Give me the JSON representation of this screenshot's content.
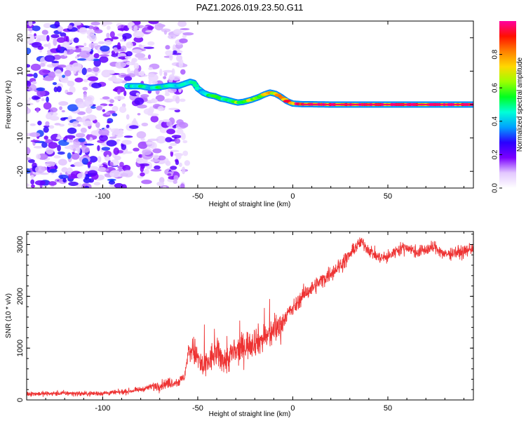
{
  "figure": {
    "title": "PAZ1.2026.019.23.50.G11"
  },
  "chart_data": [
    {
      "type": "heatmap",
      "title": "PAZ1.2026.019.23.50.G11",
      "xlabel": "Height of straight line (km)",
      "ylabel": "Frequency (Hz)",
      "xlim": [
        -140,
        95
      ],
      "ylim": [
        -25,
        25
      ],
      "xticks": [
        -100,
        -50,
        0,
        50
      ],
      "yticks": [
        -20,
        -10,
        0,
        10,
        20
      ],
      "colorbar": {
        "label": "Normalized spectral amplitude",
        "range": [
          0.0,
          1.0
        ],
        "ticks": [
          0.0,
          0.2,
          0.4,
          0.6,
          0.8
        ],
        "tick_labels": [
          "0.0",
          "0.2",
          "0.4",
          "0.6",
          "0.8"
        ],
        "colors": [
          "#ffffff",
          "#e3c8ff",
          "#7b00ff",
          "#2a00ff",
          "#00a0ff",
          "#00ffd8",
          "#00ff20",
          "#9cff00",
          "#ffd800",
          "#ff8000",
          "#ff1000",
          "#ff00a0"
        ]
      },
      "ridge": {
        "x": [
          -87,
          -80,
          -75,
          -70,
          -65,
          -60,
          -57,
          -54,
          -52,
          -50,
          -47,
          -44,
          -41,
          -38,
          -35,
          -32,
          -29,
          -26,
          -22,
          -18,
          -15,
          -12,
          -9,
          -6,
          -3,
          0,
          5,
          10,
          20,
          30,
          50,
          70,
          95
        ],
        "y": [
          5.5,
          5.5,
          5.0,
          5.2,
          5.7,
          5.6,
          6.2,
          6.8,
          6.5,
          4.8,
          3.5,
          2.8,
          2.5,
          1.8,
          1.5,
          1.0,
          0.6,
          0.8,
          1.4,
          2.2,
          3.0,
          3.6,
          3.2,
          2.2,
          1.0,
          0.3,
          0.1,
          0.1,
          0.0,
          0.0,
          0.0,
          0.0,
          0.0
        ],
        "amplitude": [
          0.45,
          0.5,
          0.5,
          0.55,
          0.5,
          0.45,
          0.5,
          0.55,
          0.5,
          0.45,
          0.5,
          0.55,
          0.55,
          0.6,
          0.62,
          0.65,
          0.65,
          0.68,
          0.7,
          0.72,
          0.75,
          0.8,
          0.85,
          0.88,
          0.92,
          0.95,
          0.95,
          0.97,
          0.97,
          0.97,
          0.97,
          0.97,
          0.97
        ]
      }
    },
    {
      "type": "line",
      "xlabel": "Height of straight line (km)",
      "ylabel": "SNR (10 * v/v)",
      "xlim": [
        -140,
        95
      ],
      "ylim": [
        0,
        3250
      ],
      "xticks": [
        -100,
        -50,
        0,
        50
      ],
      "yticks": [
        0,
        1000,
        2000,
        3000
      ],
      "series": [
        {
          "name": "SNR",
          "color": "#ee3333",
          "x": [
            -140,
            -130,
            -120,
            -110,
            -100,
            -90,
            -80,
            -75,
            -70,
            -65,
            -60,
            -57,
            -55,
            -53,
            -50,
            -47,
            -45,
            -42,
            -40,
            -37,
            -35,
            -32,
            -30,
            -27,
            -25,
            -22,
            -20,
            -17,
            -15,
            -12,
            -10,
            -8,
            -6,
            -4,
            -2,
            0,
            3,
            6,
            10,
            15,
            20,
            25,
            30,
            33,
            36,
            40,
            45,
            50,
            55,
            60,
            65,
            70,
            75,
            80,
            85,
            90,
            95
          ],
          "y": [
            120,
            120,
            130,
            120,
            130,
            150,
            200,
            250,
            280,
            330,
            350,
            450,
            900,
            1000,
            800,
            600,
            700,
            850,
            900,
            800,
            750,
            900,
            900,
            1000,
            1050,
            1100,
            1150,
            1150,
            1200,
            1250,
            1350,
            1400,
            1450,
            1600,
            1700,
            1750,
            1900,
            2050,
            2150,
            2300,
            2450,
            2600,
            2800,
            2950,
            3050,
            2900,
            2750,
            2750,
            2900,
            2950,
            2850,
            2900,
            2950,
            2800,
            2850,
            2850,
            2950
          ]
        }
      ]
    }
  ]
}
